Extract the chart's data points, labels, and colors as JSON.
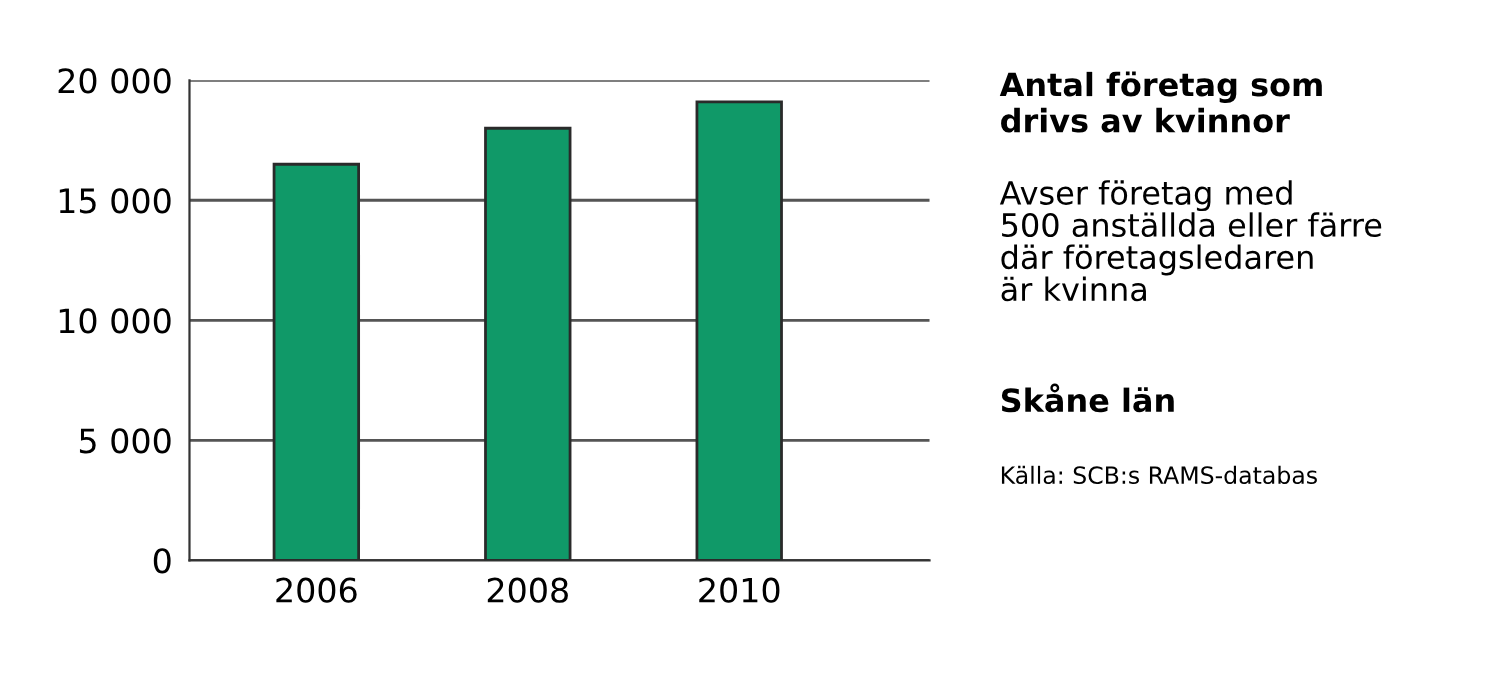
{
  "chart_data": {
    "type": "bar",
    "title": "Antal företag som\ndrivs av kvinnor",
    "subtitle": "Avser företag med\n500 anställda eller färre\ndär företagsledaren\när kvinna",
    "annotations": [
      "Skåne län",
      "Källa: SCB:s RAMS-databas"
    ],
    "categories": [
      "2006",
      "2008",
      "2010"
    ],
    "values": [
      16500,
      18000,
      19100
    ],
    "color": "#109968",
    "ylim": [
      0,
      20000
    ],
    "yticks": [
      {
        "value": 0,
        "label": "0"
      },
      {
        "value": 5000,
        "label": "5 000"
      },
      {
        "value": 10000,
        "label": "10 000"
      },
      {
        "value": 15000,
        "label": "15 000"
      },
      {
        "value": 20000,
        "label": "20 000"
      }
    ],
    "grid": "y",
    "legend": false
  }
}
